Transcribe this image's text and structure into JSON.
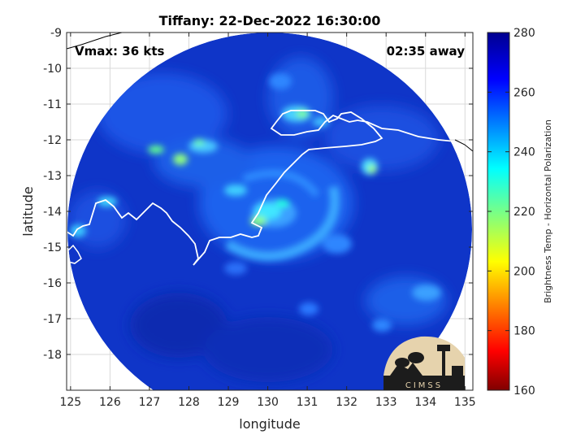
{
  "chart_data": {
    "type": "heatmap",
    "title": "Tiffany: 22-Dec-2022 16:30:00",
    "xlabel": "longitude",
    "ylabel": "latitude",
    "xlim": [
      124.9,
      135.2
    ],
    "ylim": [
      -19,
      -9
    ],
    "xticks": [
      "125",
      "126",
      "127",
      "128",
      "129",
      "130",
      "131",
      "132",
      "133",
      "134",
      "135"
    ],
    "yticks": [
      "-9",
      "-10",
      "-11",
      "-12",
      "-13",
      "-14",
      "-15",
      "-16",
      "-17",
      "-18"
    ],
    "annotations": {
      "vmax": "Vmax: 36 kts",
      "time_away": "02:35 away"
    },
    "colorbar": {
      "label": "Brightness Temp - Horizontal Polarization",
      "range": [
        160,
        280
      ],
      "ticks": [
        "280",
        "260",
        "240",
        "220",
        "200",
        "180",
        "160"
      ]
    },
    "grid": true,
    "logo_text": "CIMSS",
    "storm_center": {
      "lon": 130.0,
      "lat": -14.0
    }
  },
  "colors": {
    "background_field": "#1038c8",
    "coast_outline": "#ffffff"
  }
}
